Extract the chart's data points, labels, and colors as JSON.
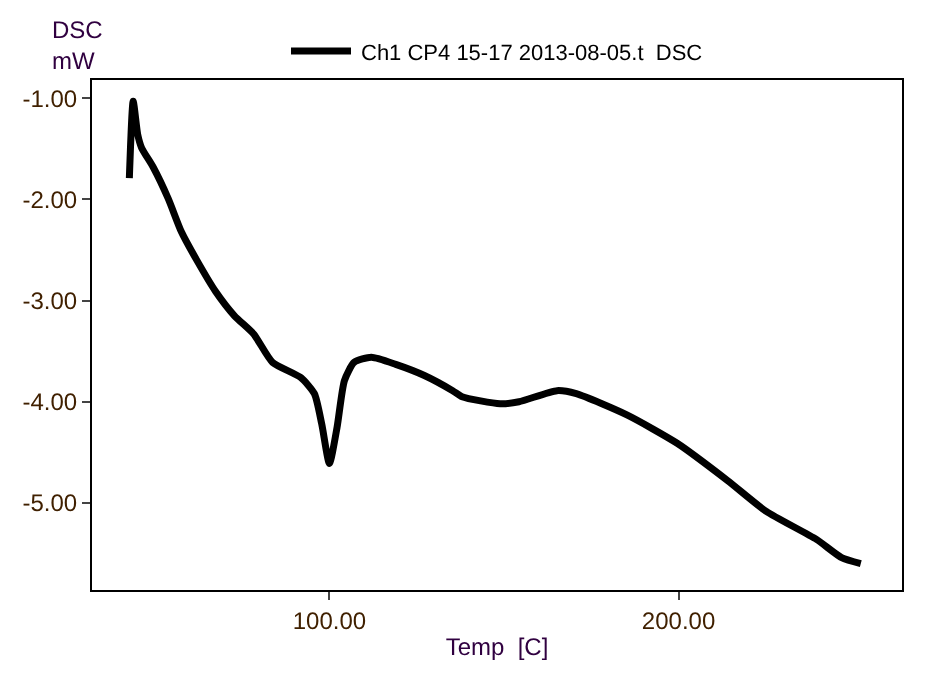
{
  "chart_data": {
    "type": "line",
    "xlabel": "Temp  [C]",
    "ylabel": "DSC\nmW",
    "xlim": [
      32,
      264
    ],
    "ylim": [
      -5.86,
      -0.82
    ],
    "xticks": [
      {
        "value": 100,
        "label": "100.00"
      },
      {
        "value": 200,
        "label": "200.00"
      }
    ],
    "yticks": [
      {
        "value": -1,
        "label": "-1.00"
      },
      {
        "value": -2,
        "label": "-2.00"
      },
      {
        "value": -3,
        "label": "-3.00"
      },
      {
        "value": -4,
        "label": "-4.00"
      },
      {
        "value": -5,
        "label": "-5.00"
      }
    ],
    "legend": "top",
    "line_style": "solid",
    "series": [
      {
        "name": "Ch1 CP4 15-17 2013-08-05.t  DSC",
        "color": "#000000",
        "x": [
          42.7,
          43.8,
          45.1,
          46.2,
          49.5,
          53.8,
          57.6,
          62,
          67.4,
          72.8,
          78.3,
          83.7,
          91.8,
          95.7,
          97.8,
          100,
          102.2,
          104.3,
          107.1,
          112,
          119,
          127.2,
          135.3,
          138,
          148.9,
          154.3,
          165.2,
          170.7,
          185.2,
          199.6,
          214.1,
          225,
          239.5,
          246.7,
          252.2
        ],
        "values": [
          -1.79,
          -1.03,
          -1.36,
          -1.49,
          -1.68,
          -1.99,
          -2.32,
          -2.6,
          -2.91,
          -3.15,
          -3.33,
          -3.61,
          -3.76,
          -3.92,
          -4.22,
          -4.61,
          -4.25,
          -3.79,
          -3.61,
          -3.56,
          -3.63,
          -3.74,
          -3.89,
          -3.95,
          -4.02,
          -4.0,
          -3.89,
          -3.92,
          -4.13,
          -4.41,
          -4.78,
          -5.08,
          -5.36,
          -5.54,
          -5.6
        ]
      }
    ]
  }
}
